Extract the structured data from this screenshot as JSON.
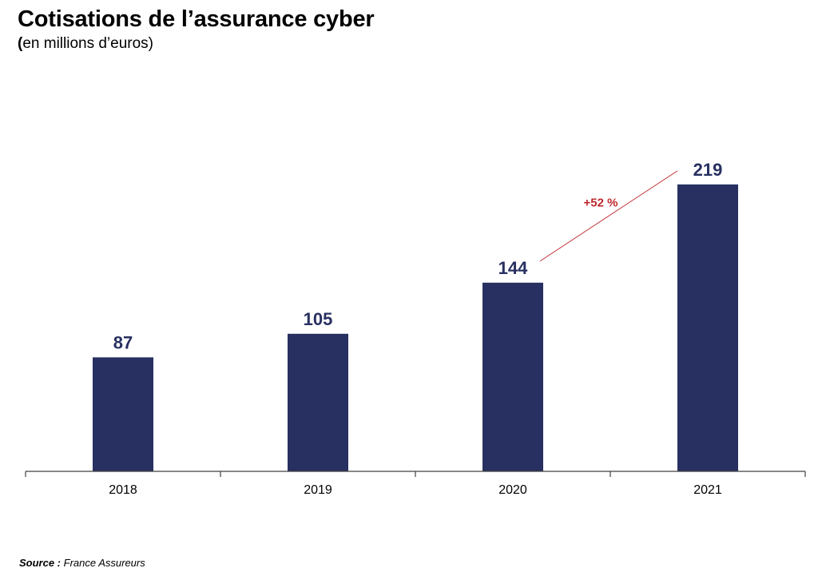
{
  "header": {
    "title": "Cotisations de l’assurance cyber",
    "subtitle_open": "(",
    "subtitle_rest": "en millions d’euros)"
  },
  "chart_data": {
    "type": "bar",
    "title": "Cotisations de l’assurance cyber",
    "subtitle": "(en millions d’euros)",
    "categories": [
      "2018",
      "2019",
      "2020",
      "2021"
    ],
    "values": [
      87,
      105,
      144,
      219
    ],
    "data_labels": [
      "87",
      "105",
      "144",
      "219"
    ],
    "xlabel": "",
    "ylabel": "",
    "ylim": [
      0,
      250
    ],
    "grid": false,
    "legend": "none",
    "annotation": {
      "text": "+52 %",
      "from_category": "2020",
      "to_category": "2021"
    },
    "colors": {
      "bar": "#283061",
      "value_label": "#283061",
      "annotation": "#c0282d",
      "axis": "#404040"
    }
  },
  "footer": {
    "source_label": "Source :",
    "source_text": " France Assureurs"
  }
}
